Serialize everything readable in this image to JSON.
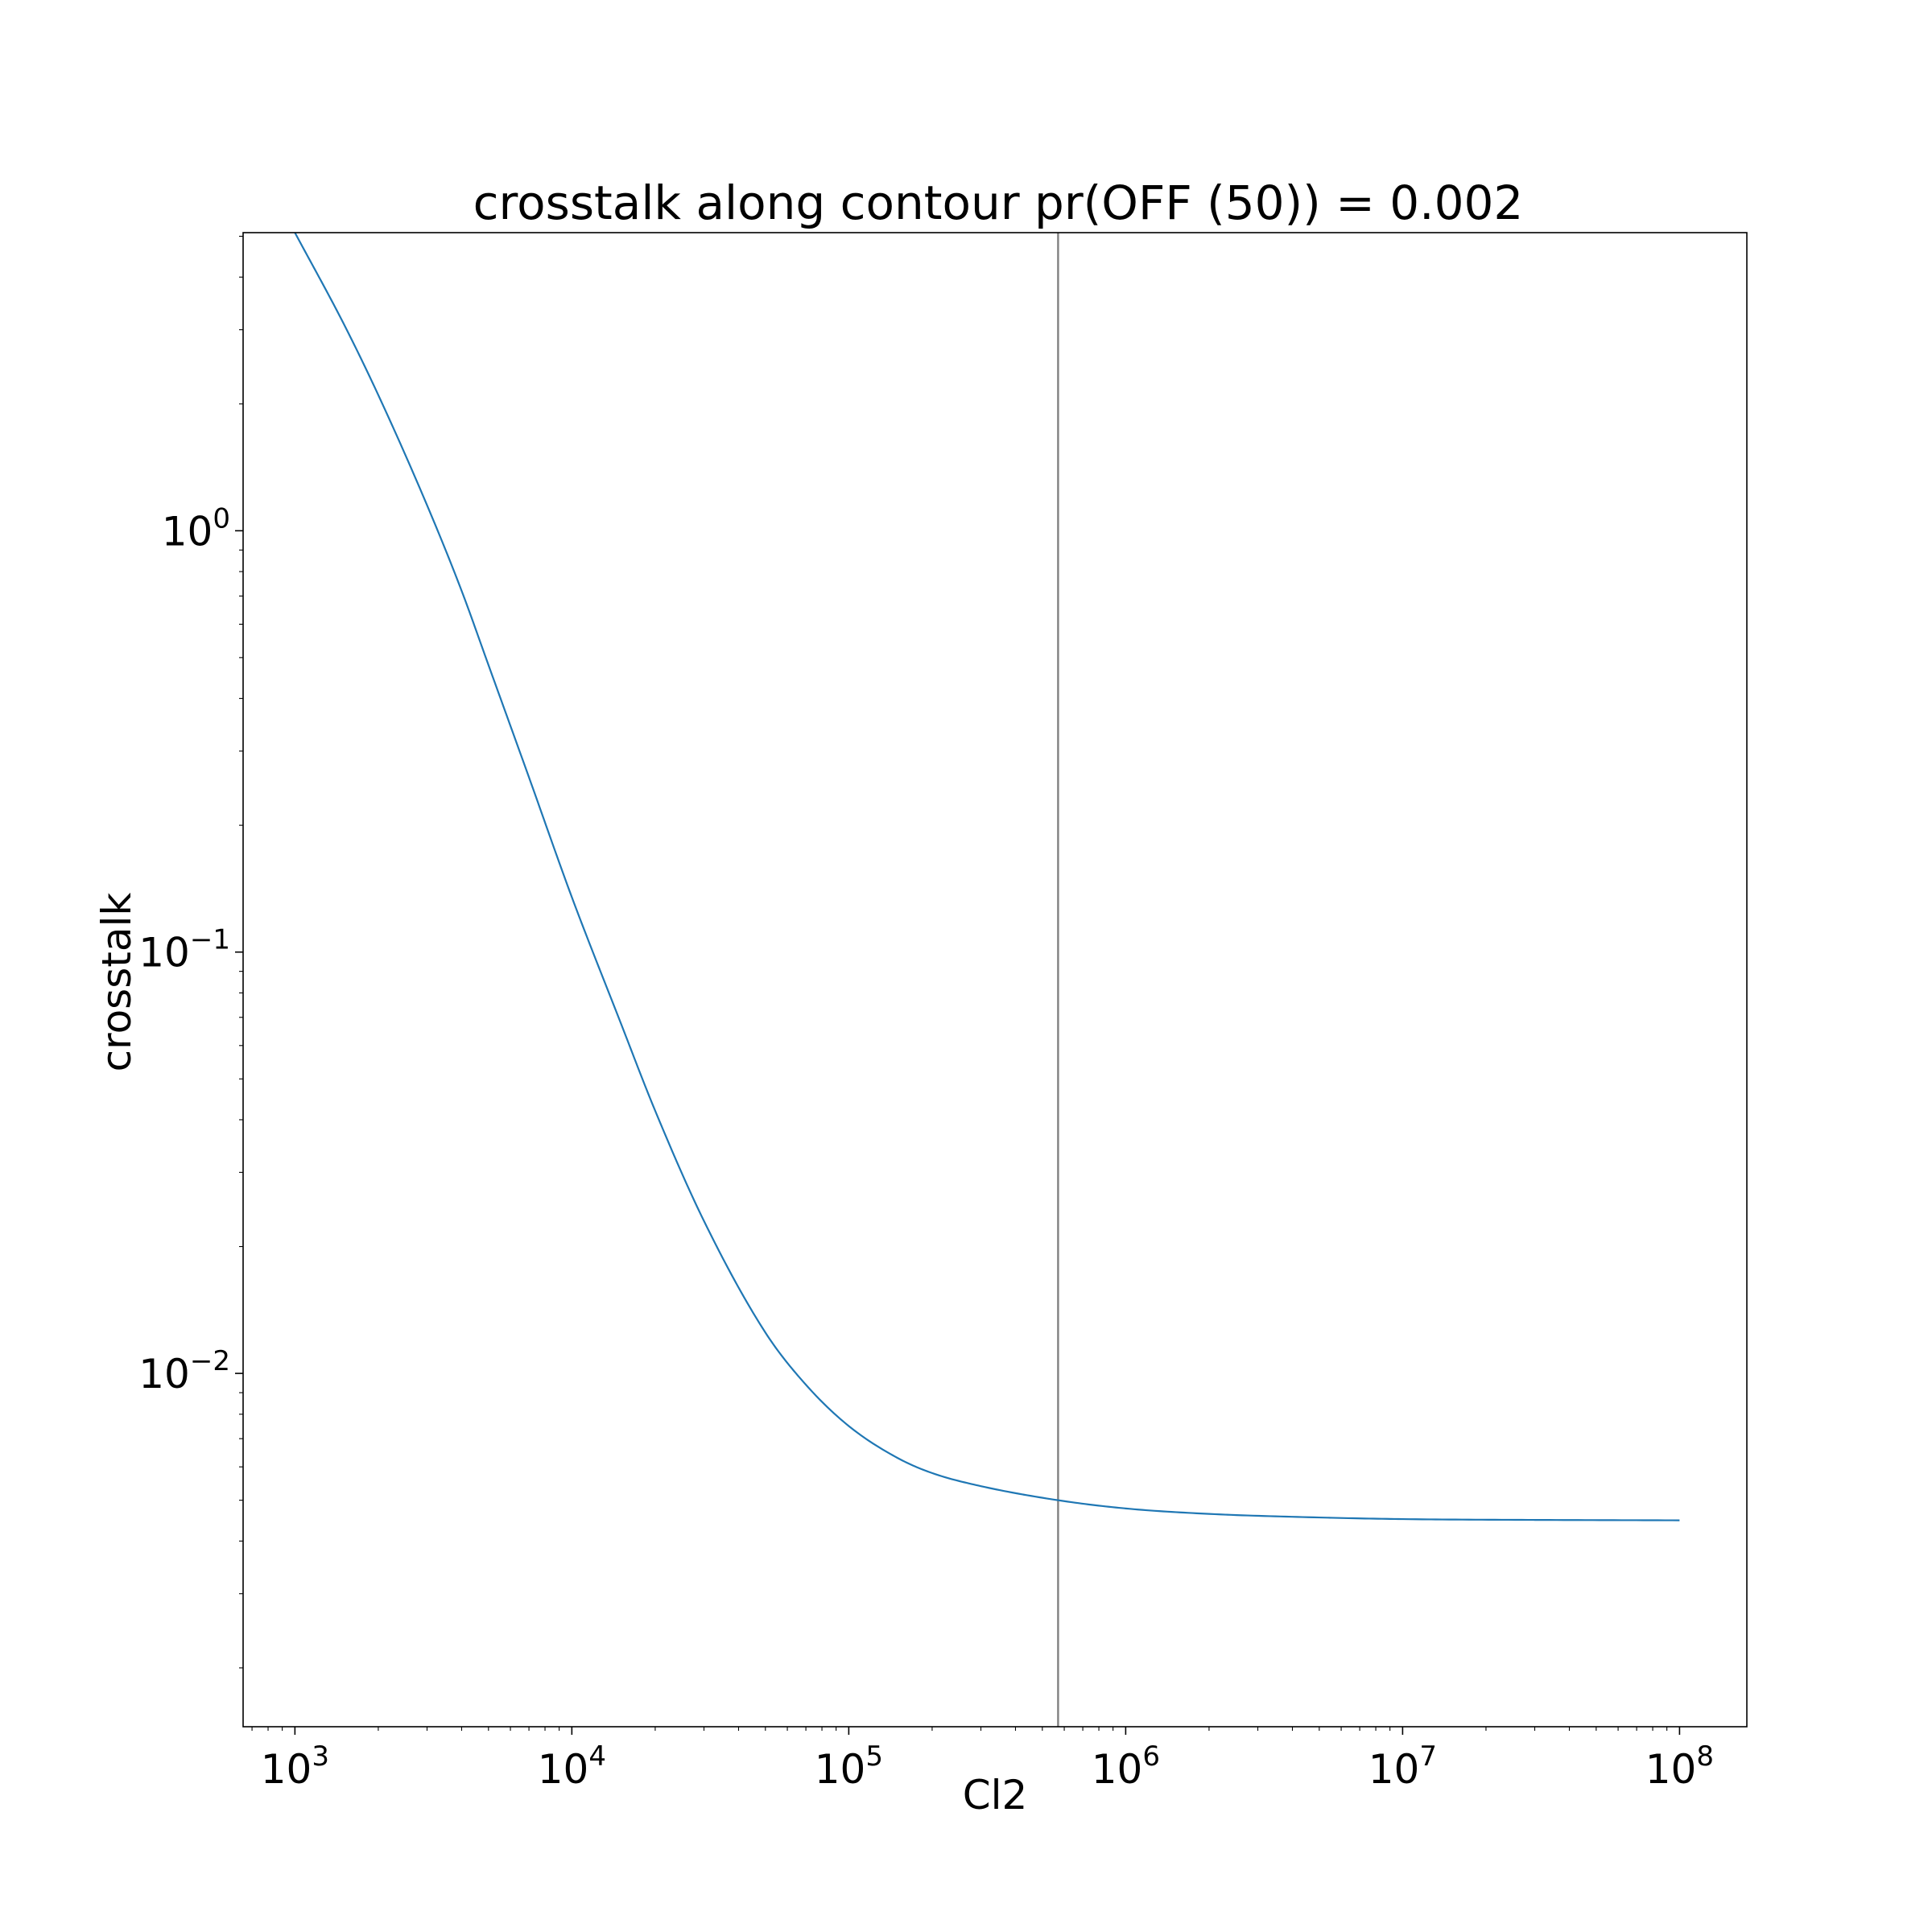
{
  "chart_data": {
    "type": "line",
    "title": "crosstalk along contour pr(OFF (50)) = 0.002",
    "xlabel": "Cl2",
    "ylabel": "crosstalk",
    "xscale": "log",
    "yscale": "log",
    "xlim": [
      650,
      175000000
    ],
    "ylim": [
      0.00145,
      5.1
    ],
    "grid": false,
    "legend": "none",
    "x_ticks": [
      {
        "value": 1000,
        "base": "10",
        "exp": "3"
      },
      {
        "value": 10000,
        "base": "10",
        "exp": "4"
      },
      {
        "value": 100000,
        "base": "10",
        "exp": "5"
      },
      {
        "value": 1000000,
        "base": "10",
        "exp": "6"
      },
      {
        "value": 10000000,
        "base": "10",
        "exp": "7"
      },
      {
        "value": 100000000,
        "base": "10",
        "exp": "8"
      }
    ],
    "y_ticks": [
      {
        "value": 1,
        "base": "10",
        "exp": "0"
      },
      {
        "value": 0.1,
        "base": "10",
        "exp": "−1"
      },
      {
        "value": 0.01,
        "base": "10",
        "exp": "−2"
      }
    ],
    "vline": {
      "x": 570000,
      "color": "#808080"
    },
    "series": [
      {
        "color": "#1f77b4",
        "x": [
          1000,
          1500,
          2000,
          3000,
          4000,
          5000,
          7000,
          10000,
          15000,
          20000,
          30000,
          50000,
          70000,
          100000,
          150000,
          200000,
          300000,
          570000,
          1000000,
          2000000,
          5000000,
          10000000,
          30000000,
          100000000
        ],
        "y": [
          5.1,
          3.1,
          2.1,
          1.15,
          0.72,
          0.48,
          0.26,
          0.135,
          0.068,
          0.042,
          0.023,
          0.0125,
          0.0094,
          0.0075,
          0.0063,
          0.0058,
          0.0054,
          0.005,
          0.00478,
          0.00464,
          0.00455,
          0.00451,
          0.00449,
          0.00448
        ]
      }
    ]
  }
}
